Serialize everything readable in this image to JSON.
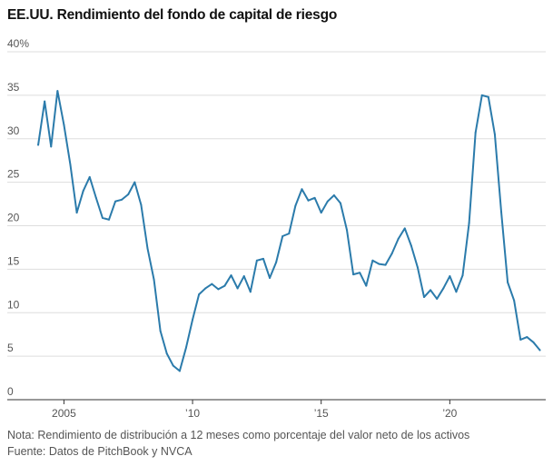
{
  "title": "EE.UU. Rendimiento del fondo de capital de riesgo",
  "note": "Nota: Rendimiento de distribución a 12 meses como porcentaje del valor neto de los activos",
  "source": "Fuente: Datos de PitchBook y NVCA",
  "colors": {
    "line": "#2b7bab",
    "grid": "#dddddd",
    "axis": "#333333",
    "text": "#555555"
  },
  "chart_data": {
    "type": "line",
    "title": "EE.UU. Rendimiento del fondo de capital de riesgo",
    "xlabel": "",
    "ylabel": "",
    "ylim": [
      0,
      40
    ],
    "xlim": [
      2003.75,
      2023.8
    ],
    "grid": true,
    "y_ticks": [
      {
        "value": 40,
        "label": "40%"
      },
      {
        "value": 35,
        "label": "35"
      },
      {
        "value": 30,
        "label": "30"
      },
      {
        "value": 25,
        "label": "25"
      },
      {
        "value": 20,
        "label": "20"
      },
      {
        "value": 15,
        "label": "15"
      },
      {
        "value": 10,
        "label": "10"
      },
      {
        "value": 5,
        "label": "5"
      },
      {
        "value": 0,
        "label": "0"
      }
    ],
    "x_ticks": [
      {
        "value": 2005,
        "label": "2005"
      },
      {
        "value": 2010,
        "label": "’10"
      },
      {
        "value": 2015,
        "label": "’15"
      },
      {
        "value": 2020,
        "label": "’20"
      }
    ],
    "series": [
      {
        "x": [
          2004.0,
          2004.25,
          2004.5,
          2004.75,
          2005.0,
          2005.25,
          2005.5,
          2005.75,
          2006.0,
          2006.25,
          2006.5,
          2006.75,
          2007.0,
          2007.25,
          2007.5,
          2007.75,
          2008.0,
          2008.25,
          2008.5,
          2008.75,
          2009.0,
          2009.25,
          2009.5,
          2009.75,
          2010.0,
          2010.25,
          2010.5,
          2010.75,
          2011.0,
          2011.25,
          2011.5,
          2011.75,
          2012.0,
          2012.25,
          2012.5,
          2012.75,
          2013.0,
          2013.25,
          2013.5,
          2013.75,
          2014.0,
          2014.25,
          2014.5,
          2014.75,
          2015.0,
          2015.25,
          2015.5,
          2015.75,
          2016.0,
          2016.25,
          2016.5,
          2016.75,
          2017.0,
          2017.25,
          2017.5,
          2017.75,
          2018.0,
          2018.25,
          2018.5,
          2018.75,
          2019.0,
          2019.25,
          2019.5,
          2019.75,
          2020.0,
          2020.25,
          2020.5,
          2020.75,
          2021.0,
          2021.25,
          2021.5,
          2021.75,
          2022.0,
          2022.25,
          2022.5,
          2022.75,
          2023.0,
          2023.25,
          2023.5
        ],
        "values": [
          29.3,
          34.3,
          29.1,
          35.5,
          31.6,
          27.0,
          21.5,
          24.0,
          25.6,
          23.2,
          20.9,
          20.7,
          22.8,
          23.0,
          23.6,
          25.0,
          22.4,
          17.4,
          13.8,
          7.9,
          5.3,
          3.9,
          3.3,
          6.0,
          9.2,
          12.1,
          12.8,
          13.3,
          12.7,
          13.1,
          14.3,
          12.8,
          14.2,
          12.4,
          16.0,
          16.2,
          14.0,
          15.8,
          18.8,
          19.1,
          22.3,
          24.2,
          22.9,
          23.2,
          21.5,
          22.8,
          23.5,
          22.6,
          19.5,
          14.4,
          14.6,
          13.1,
          16.0,
          15.6,
          15.5,
          16.8,
          18.5,
          19.7,
          17.7,
          15.2,
          11.8,
          12.6,
          11.6,
          12.8,
          14.2,
          12.4,
          14.3,
          20.3,
          30.7,
          35.0,
          34.8,
          30.5,
          21.6,
          13.5,
          11.4,
          6.9,
          7.2,
          6.6,
          5.7
        ]
      }
    ]
  }
}
